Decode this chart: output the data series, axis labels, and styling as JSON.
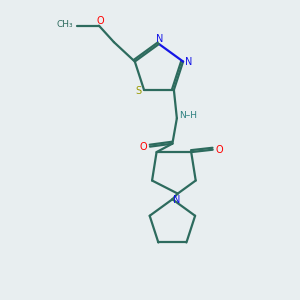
{
  "background_color": "#e8eef0",
  "bond_color": "#2d6b5e",
  "N_color": "#1414e6",
  "O_color": "#ff0000",
  "S_color": "#9a9a00",
  "NH_color": "#2d8080",
  "figsize": [
    3.0,
    3.0
  ],
  "dpi": 100,
  "xlim": [
    0,
    10
  ],
  "ylim": [
    0,
    10
  ]
}
